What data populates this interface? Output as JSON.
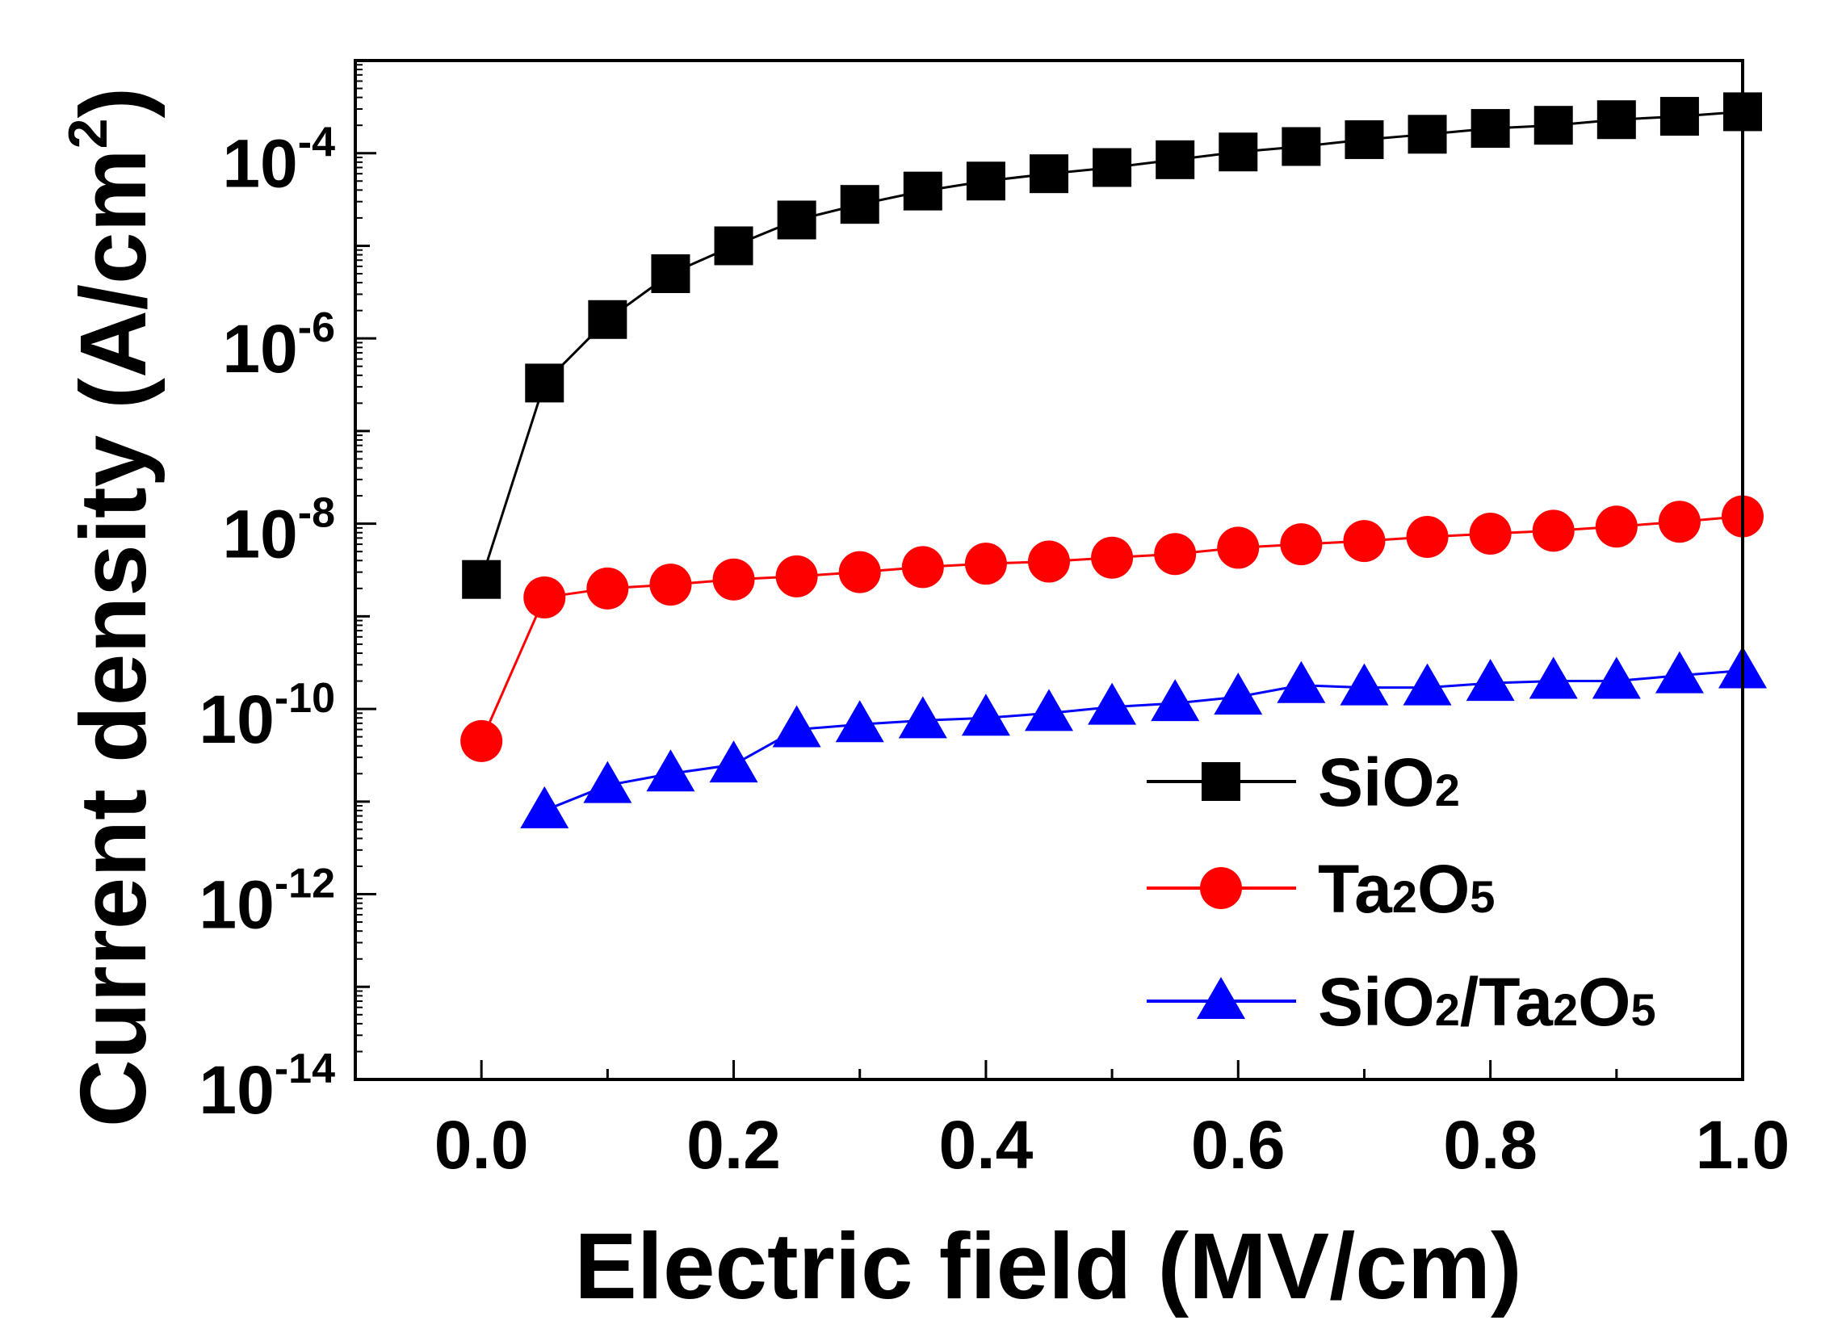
{
  "chart_data": {
    "type": "line",
    "xlabel": "Electric field (MV/cm)",
    "ylabel": "Current density (A/cm²)",
    "ylabel_parts": {
      "base": "Current density (A/cm",
      "sup": "2",
      "close": ")"
    },
    "xlim": [
      -0.1,
      1.0
    ],
    "ylim": [
      1e-14,
      0.001
    ],
    "yscale": "log",
    "x_ticks": [
      {
        "value": 0.0,
        "label": "0.0"
      },
      {
        "value": 0.2,
        "label": "0.2"
      },
      {
        "value": 0.4,
        "label": "0.4"
      },
      {
        "value": 0.6,
        "label": "0.6"
      },
      {
        "value": 0.8,
        "label": "0.8"
      },
      {
        "value": 1.0,
        "label": "1.0"
      }
    ],
    "y_ticks": [
      {
        "exp": -4,
        "base": "10",
        "sup": "-4"
      },
      {
        "exp": -6,
        "base": "10",
        "sup": "-6"
      },
      {
        "exp": -8,
        "base": "10",
        "sup": "-8"
      },
      {
        "exp": -10,
        "base": "10",
        "sup": "-10"
      },
      {
        "exp": -12,
        "base": "10",
        "sup": "-12"
      },
      {
        "exp": -14,
        "base": "10",
        "sup": "-14"
      }
    ],
    "legend_position": "bottom-right",
    "series": [
      {
        "name": "SiO2",
        "legend_parts": [
          [
            "Si",
            false
          ],
          [
            "O",
            false
          ],
          [
            "2",
            true
          ]
        ],
        "color": "#000000",
        "marker": "square",
        "x": [
          0.0,
          0.05,
          0.1,
          0.15,
          0.2,
          0.25,
          0.3,
          0.35,
          0.4,
          0.45,
          0.5,
          0.55,
          0.6,
          0.65,
          0.7,
          0.75,
          0.8,
          0.85,
          0.9,
          0.95,
          1.0
        ],
        "y": [
          2.5e-09,
          3.3e-07,
          1.6e-06,
          5e-06,
          1e-05,
          1.9e-05,
          2.8e-05,
          3.9e-05,
          5e-05,
          6e-05,
          7e-05,
          8.5e-05,
          0.000103,
          0.000118,
          0.00014,
          0.00016,
          0.000185,
          0.0002,
          0.00023,
          0.00025,
          0.00028
        ]
      },
      {
        "name": "Ta2O5",
        "legend_parts": [
          [
            "Ta",
            false
          ],
          [
            "2",
            true
          ],
          [
            "O",
            false
          ],
          [
            "5",
            true
          ]
        ],
        "color": "#ff0000",
        "marker": "circle",
        "x": [
          0.0,
          0.05,
          0.1,
          0.15,
          0.2,
          0.25,
          0.3,
          0.35,
          0.4,
          0.45,
          0.5,
          0.55,
          0.6,
          0.65,
          0.7,
          0.75,
          0.8,
          0.85,
          0.9,
          0.95,
          1.0
        ],
        "y": [
          4.5e-11,
          1.6e-09,
          2e-09,
          2.2e-09,
          2.5e-09,
          2.7e-09,
          3e-09,
          3.4e-09,
          3.7e-09,
          3.9e-09,
          4.3e-09,
          4.7e-09,
          5.5e-09,
          6e-09,
          6.5e-09,
          7.2e-09,
          7.8e-09,
          8.4e-09,
          9.3e-09,
          1.05e-08,
          1.2e-08
        ]
      },
      {
        "name": "SiO2/Ta2O5",
        "legend_parts": [
          [
            "Si",
            false
          ],
          [
            "O",
            false
          ],
          [
            "2",
            true
          ],
          [
            "/Ta",
            false
          ],
          [
            "2",
            true
          ],
          [
            "O",
            false
          ],
          [
            "5",
            true
          ]
        ],
        "color": "#0000ff",
        "marker": "triangle",
        "x": [
          0.05,
          0.1,
          0.15,
          0.2,
          0.25,
          0.3,
          0.35,
          0.4,
          0.45,
          0.5,
          0.55,
          0.6,
          0.65,
          0.7,
          0.75,
          0.8,
          0.85,
          0.9,
          0.95,
          1.0
        ],
        "y": [
          8e-12,
          1.5e-11,
          2e-11,
          2.5e-11,
          6e-11,
          6.8e-11,
          7.5e-11,
          8e-11,
          9e-11,
          1.05e-10,
          1.15e-10,
          1.35e-10,
          1.8e-10,
          1.7e-10,
          1.7e-10,
          1.9e-10,
          2e-10,
          2e-10,
          2.3e-10,
          2.6e-10
        ]
      }
    ]
  }
}
